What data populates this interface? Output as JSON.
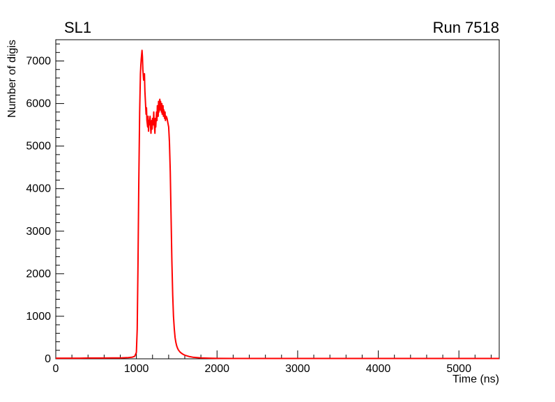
{
  "chart_data": {
    "type": "line",
    "title": "SL1",
    "annotation": "Run 7518",
    "xlabel": "Time (ns)",
    "ylabel": "Number of digis",
    "xlim": [
      0,
      5500
    ],
    "ylim": [
      0,
      7500
    ],
    "x_ticks": [
      0,
      1000,
      2000,
      3000,
      4000,
      5000
    ],
    "y_ticks": [
      0,
      1000,
      2000,
      3000,
      4000,
      5000,
      6000,
      7000
    ],
    "x_minor_per_major": 5,
    "y_minor_per_major": 5,
    "grid": false,
    "legend": "none",
    "line_color": "#ff0000",
    "frame_color": "#000000",
    "background_color": "#ffffff",
    "series": [
      {
        "name": "digis",
        "x": [
          0,
          100,
          200,
          300,
          400,
          500,
          600,
          700,
          800,
          850,
          900,
          950,
          980,
          1000,
          1010,
          1020,
          1030,
          1040,
          1050,
          1055,
          1060,
          1070,
          1075,
          1080,
          1090,
          1100,
          1105,
          1110,
          1120,
          1125,
          1130,
          1140,
          1145,
          1150,
          1155,
          1160,
          1170,
          1175,
          1180,
          1190,
          1195,
          1200,
          1210,
          1215,
          1220,
          1230,
          1235,
          1240,
          1250,
          1255,
          1260,
          1270,
          1275,
          1280,
          1290,
          1295,
          1300,
          1310,
          1315,
          1320,
          1330,
          1335,
          1340,
          1350,
          1355,
          1360,
          1370,
          1380,
          1390,
          1400,
          1410,
          1420,
          1430,
          1440,
          1450,
          1460,
          1470,
          1480,
          1490,
          1500,
          1510,
          1520,
          1540,
          1560,
          1580,
          1600,
          1650,
          1700,
          1750,
          1800,
          1900,
          2000,
          2200,
          2500,
          3000,
          3500,
          4000,
          4500,
          5000,
          5250,
          5500
        ],
        "y": [
          15,
          15,
          15,
          15,
          18,
          18,
          18,
          20,
          22,
          25,
          30,
          40,
          60,
          150,
          700,
          2200,
          4200,
          5800,
          6700,
          6900,
          7050,
          7250,
          7100,
          6800,
          6550,
          6700,
          6300,
          6100,
          5750,
          5900,
          5600,
          5450,
          5700,
          5350,
          5600,
          5500,
          5700,
          5450,
          5300,
          5600,
          5400,
          5650,
          5500,
          5800,
          5550,
          5300,
          5650,
          5450,
          5800,
          5600,
          5950,
          5700,
          6050,
          5800,
          6100,
          5850,
          6050,
          5800,
          6000,
          5750,
          5950,
          5700,
          5850,
          5650,
          5800,
          5600,
          5700,
          5650,
          5550,
          5450,
          5100,
          4400,
          3300,
          2300,
          1500,
          1000,
          700,
          500,
          380,
          300,
          250,
          210,
          160,
          130,
          105,
          85,
          55,
          38,
          28,
          20,
          14,
          10,
          8,
          8,
          8,
          8,
          8,
          8,
          8,
          8,
          8
        ]
      }
    ]
  }
}
